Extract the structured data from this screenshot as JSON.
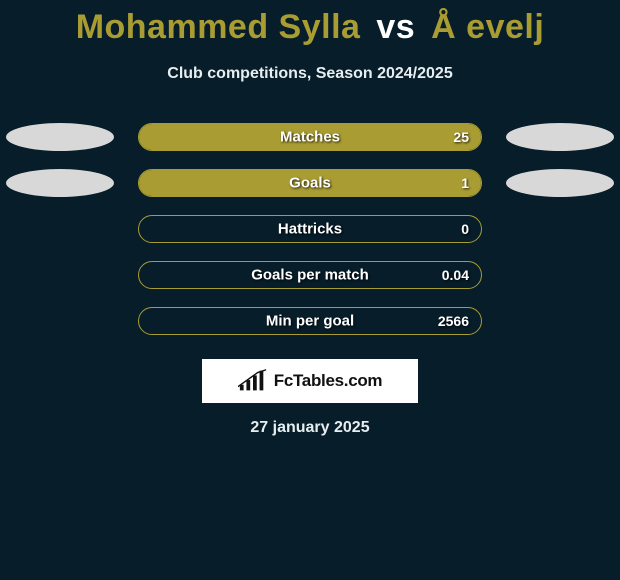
{
  "title": {
    "player1": "Mohammed Sylla",
    "vs": "vs",
    "player2": "Å evelj"
  },
  "subtitle": "Club competitions, Season 2024/2025",
  "accent_color": "#a99c32",
  "background_color": "#071d29",
  "oval_color": "#d8d8d8",
  "stats": [
    {
      "label": "Matches",
      "value": "25",
      "fill_pct": 100,
      "ovals": true
    },
    {
      "label": "Goals",
      "value": "1",
      "fill_pct": 100,
      "ovals": true
    },
    {
      "label": "Hattricks",
      "value": "0",
      "fill_pct": 0,
      "ovals": false
    },
    {
      "label": "Goals per match",
      "value": "0.04",
      "fill_pct": 0,
      "ovals": false
    },
    {
      "label": "Min per goal",
      "value": "2566",
      "fill_pct": 0,
      "ovals": false
    }
  ],
  "logo_text": "FcTables.com",
  "date": "27 january 2025"
}
